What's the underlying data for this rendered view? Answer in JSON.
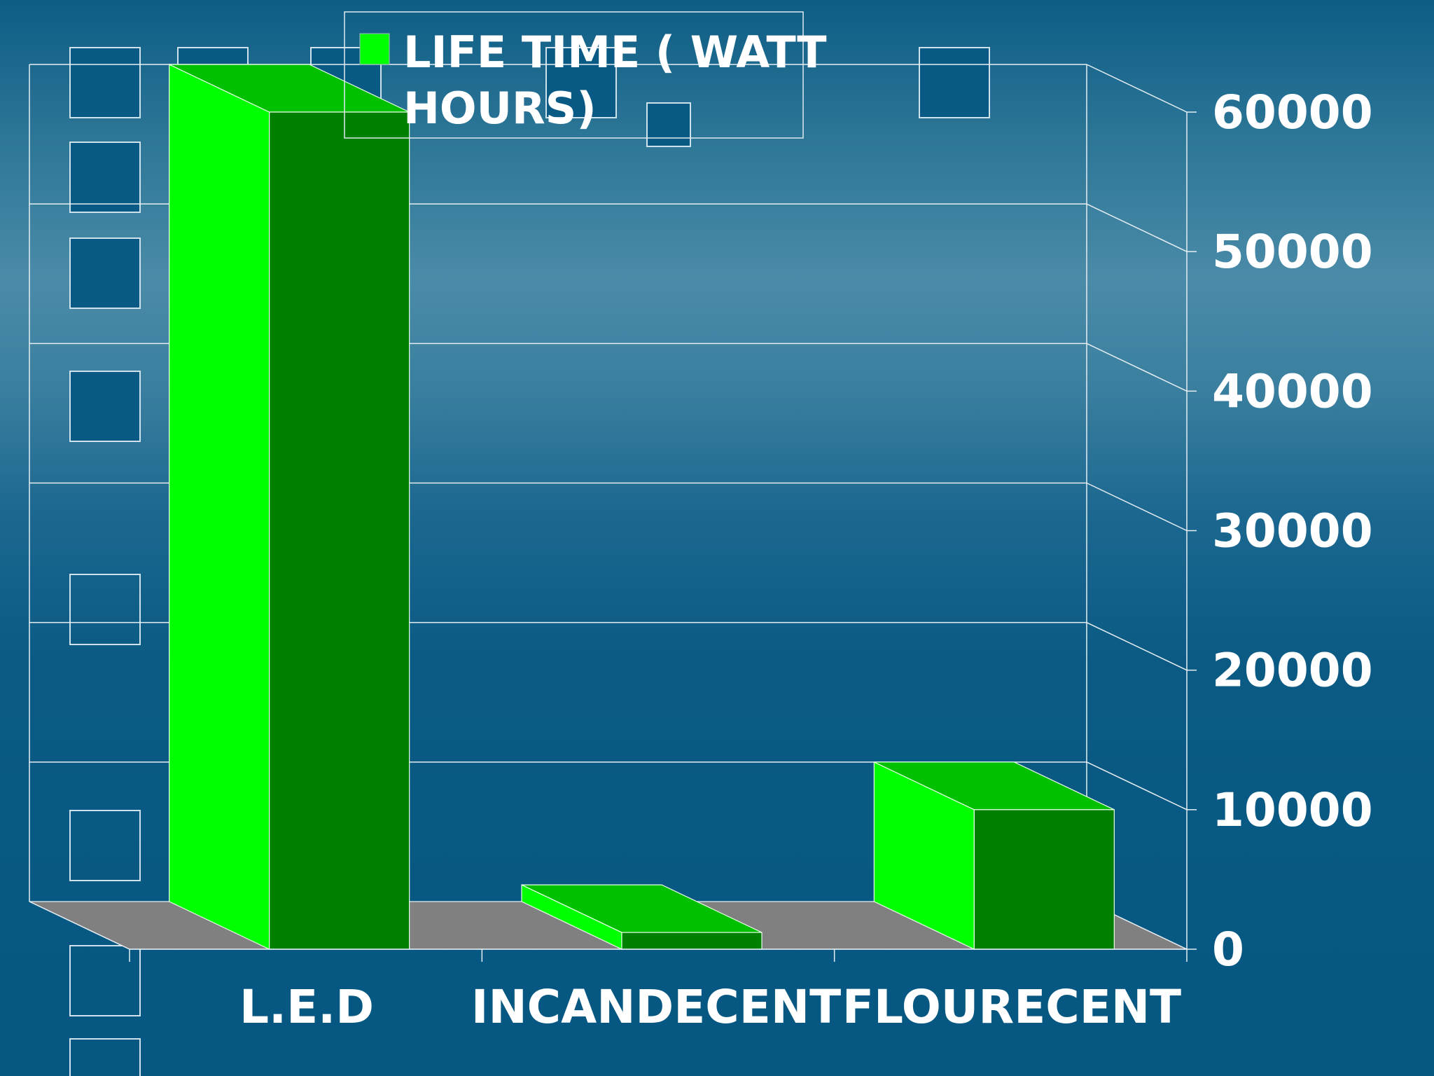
{
  "chart_data": {
    "type": "bar",
    "style": "3d-column",
    "categories": [
      "L.E.D",
      "INCANDECENT",
      "FLOURECENT"
    ],
    "series": [
      {
        "name": "LIFE TIME ( WATT HOURS)",
        "values": [
          60000,
          1200,
          10000
        ]
      }
    ],
    "ylim": [
      0,
      60000
    ],
    "yticks": [
      "0",
      "10000",
      "20000",
      "30000",
      "40000",
      "50000",
      "60000"
    ],
    "y_axis_side": "right",
    "grid": true,
    "legend_position": "top",
    "legend_lines": [
      "LIFE TIME ( WATT",
      "HOURS)"
    ],
    "colors": {
      "front_face": "#008000",
      "side_face": "#00ff00",
      "top_face": "#00c000",
      "floor": "#808080",
      "gridlines": "#e6eef3",
      "text": "#ffffff",
      "background": "#0a5a84"
    }
  }
}
